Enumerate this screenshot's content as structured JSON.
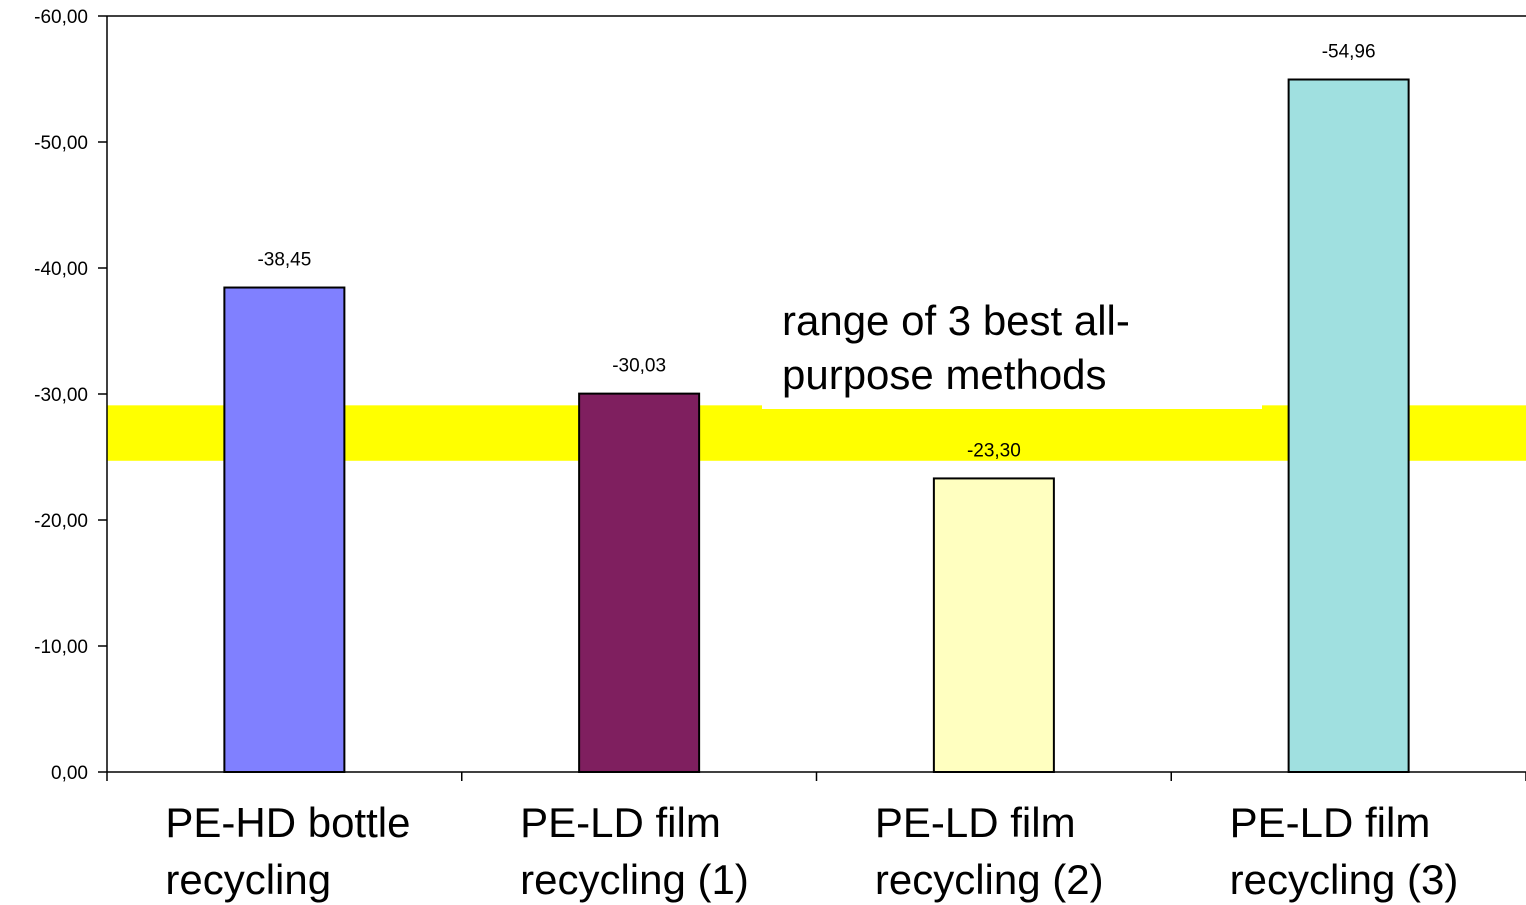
{
  "chart_data": {
    "type": "bar",
    "categories": [
      [
        "PE-HD bottle",
        "recycling"
      ],
      [
        "PE-LD film",
        "recycling (1)"
      ],
      [
        "PE-LD film",
        "recycling (2)"
      ],
      [
        "PE-LD film",
        "recycling (3)"
      ]
    ],
    "values": [
      -38.45,
      -30.03,
      -23.3,
      -54.96
    ],
    "data_labels": [
      "-38,45",
      "-30,03",
      "-23,30",
      "-54,96"
    ],
    "colors": [
      "#8080ff",
      "#7f1f5f",
      "#ffffc0",
      "#a0e0e0"
    ],
    "ylim": [
      0,
      -60
    ],
    "y_axis_direction": "negative values upward",
    "y_ticks": [
      0,
      -10,
      -20,
      -30,
      -40,
      -50,
      -60
    ],
    "y_tick_labels": [
      "0,00",
      "-10,00",
      "-20,00",
      "-30,00",
      "-40,00",
      "-50,00",
      "-60,00"
    ],
    "band": {
      "range": [
        -24.7,
        -29.1
      ],
      "color": "#ffff00",
      "label": [
        "range of 3 best all-",
        "purpose methods"
      ]
    },
    "title": "",
    "xlabel": "",
    "ylabel": "",
    "grid": false,
    "legend": "none"
  }
}
